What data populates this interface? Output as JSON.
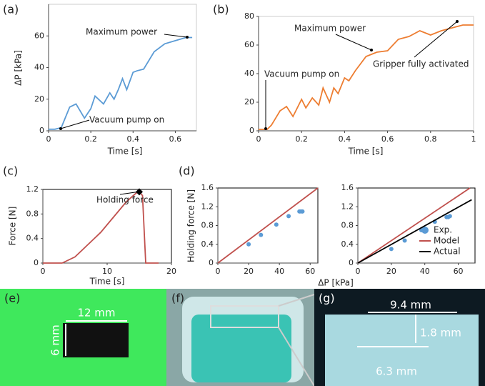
{
  "chart_data": [
    {
      "type": "line",
      "panel_label": "(a)",
      "x_label": "Time [s]",
      "y_label": "ΔP [kPa]",
      "xlim": [
        0,
        0.7
      ],
      "ylim": [
        0,
        80
      ],
      "xticks": [
        0,
        0.2,
        0.4,
        0.6
      ],
      "yticks": [
        0,
        20,
        40,
        60
      ],
      "series": [
        {
          "type": "line",
          "color": "#5b9bd5",
          "x": [
            0,
            0.03,
            0.06,
            0.1,
            0.13,
            0.17,
            0.2,
            0.22,
            0.26,
            0.29,
            0.31,
            0.33,
            0.35,
            0.37,
            0.4,
            0.42,
            0.45,
            0.5,
            0.55,
            0.6,
            0.65,
            0.68
          ],
          "values": [
            1,
            1,
            2,
            15,
            17,
            8,
            14,
            22,
            17,
            24,
            20,
            26,
            33,
            26,
            37,
            38,
            39,
            50,
            55,
            57,
            59,
            59
          ]
        }
      ],
      "annotations": [
        "Maximum power",
        "Vacuum pump on"
      ]
    },
    {
      "type": "line",
      "panel_label": "(b)",
      "x_label": "Time [s]",
      "xlim": [
        0,
        1
      ],
      "ylim": [
        0,
        80
      ],
      "xticks": [
        0,
        0.2,
        0.4,
        0.6,
        0.8,
        1
      ],
      "yticks": [
        0,
        20,
        40,
        60,
        80
      ],
      "series": [
        {
          "type": "line",
          "color": "#ed7d31",
          "x": [
            0,
            0.04,
            0.06,
            0.1,
            0.13,
            0.16,
            0.2,
            0.22,
            0.25,
            0.28,
            0.3,
            0.33,
            0.35,
            0.37,
            0.4,
            0.42,
            0.45,
            0.5,
            0.55,
            0.6,
            0.65,
            0.7,
            0.75,
            0.8,
            0.85,
            0.9,
            0.95,
            1
          ],
          "values": [
            1,
            1,
            4,
            14,
            17,
            10,
            22,
            16,
            23,
            18,
            30,
            20,
            30,
            26,
            37,
            35,
            42,
            52,
            55,
            56,
            64,
            66,
            70,
            67,
            70,
            72,
            74,
            74
          ]
        }
      ],
      "annotations": [
        "Maximum power",
        "Vacuum pump on",
        "Gripper fully activated"
      ]
    },
    {
      "type": "line",
      "panel_label": "(c)",
      "x_label": "Time [s]",
      "y_label": "Force [N]",
      "xlim": [
        0,
        20
      ],
      "ylim": [
        0,
        1.2
      ],
      "xticks": [
        0,
        10,
        20
      ],
      "yticks": [
        0,
        0.4,
        0.8,
        1.2
      ],
      "series": [
        {
          "type": "line",
          "color": "#c0504d",
          "x": [
            0,
            3,
            5,
            7,
            9,
            11,
            13,
            14.5,
            15,
            15.5,
            16,
            18
          ],
          "values": [
            0,
            0,
            0.1,
            0.3,
            0.5,
            0.75,
            1.0,
            1.14,
            1.16,
            1.1,
            0,
            0
          ]
        },
        {
          "type": "diamond",
          "color": "#000000",
          "x": [
            15
          ],
          "values": [
            1.16
          ]
        }
      ],
      "annotations": [
        "Holding force"
      ]
    },
    {
      "type": "line",
      "panel_label": "(d)",
      "x_label": "ΔP [kPa]",
      "y_label": "Holding force [N]",
      "xlim": [
        0,
        65
      ],
      "ylim": [
        0,
        1.6
      ],
      "xticks": [
        0,
        20,
        40,
        60
      ],
      "yticks": [
        0,
        0.4,
        0.8,
        1.2,
        1.6
      ],
      "series": [
        {
          "type": "line",
          "color": "#c0504d",
          "x": [
            0,
            65
          ],
          "values": [
            0,
            1.6
          ]
        },
        {
          "type": "scatter",
          "color": "#5b9bd5",
          "x": [
            20,
            28,
            38,
            46,
            53,
            54,
            55
          ],
          "values": [
            0.4,
            0.6,
            0.82,
            1.0,
            1.1,
            1.1,
            1.1
          ]
        }
      ]
    },
    {
      "type": "line",
      "xlim": [
        0,
        70
      ],
      "ylim": [
        0,
        1.6
      ],
      "xticks": [
        0,
        20,
        40,
        60
      ],
      "yticks": [
        0,
        0.4,
        0.8,
        1.2,
        1.6
      ],
      "series": [
        {
          "type": "scatter",
          "name": "Exp.",
          "color": "#5b9bd5",
          "x": [
            20,
            28,
            38,
            46,
            53,
            54,
            55
          ],
          "values": [
            0.3,
            0.48,
            0.7,
            0.88,
            0.98,
            0.98,
            1.0
          ]
        },
        {
          "type": "line",
          "name": "Model",
          "color": "#c0504d",
          "x": [
            0,
            67
          ],
          "values": [
            0,
            1.6
          ]
        },
        {
          "type": "line",
          "name": "Actual",
          "color": "#000000",
          "x": [
            0,
            68
          ],
          "values": [
            0,
            1.35
          ]
        }
      ]
    }
  ],
  "photos": {
    "e": {
      "label": "(e)",
      "width": "12 mm",
      "height": "6 mm"
    },
    "f": {
      "label": "(f)"
    },
    "g": {
      "label": "(g)",
      "width": "9.4 mm",
      "depth": "1.8 mm",
      "spot": "6.3 mm"
    }
  }
}
